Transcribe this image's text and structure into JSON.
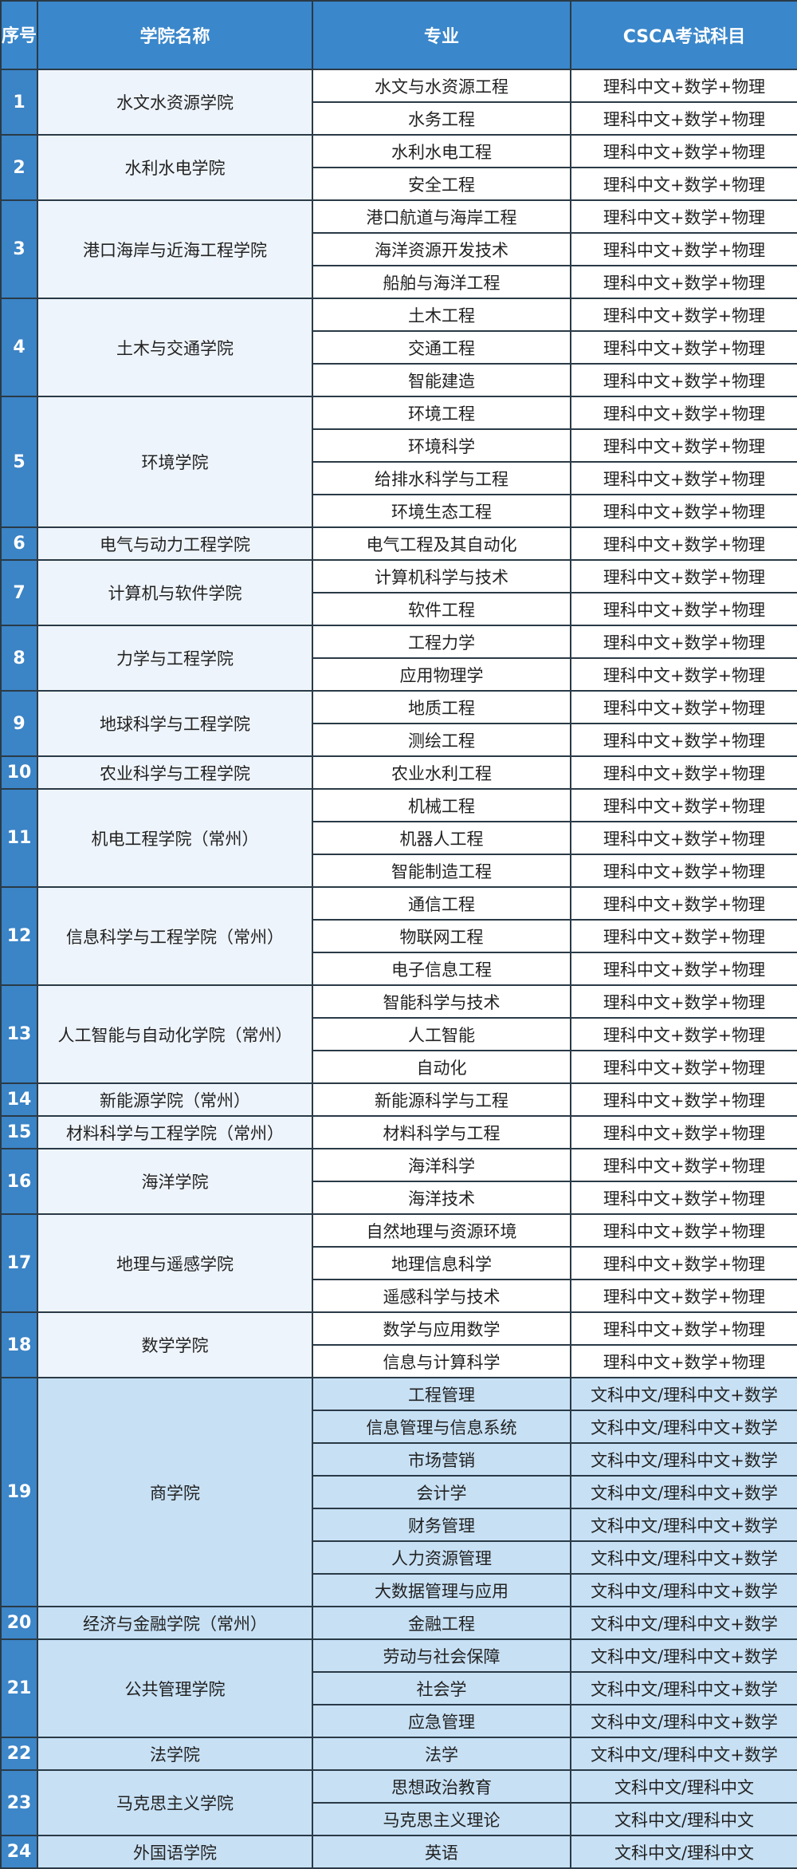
{
  "header": {
    "index": "序号",
    "college": "学院名称",
    "major": "专业",
    "subjects": "CSCA考试科目"
  },
  "colors": {
    "header": "#3a87cb",
    "index_column": "#3b84c6",
    "college_column": "#eef4fb",
    "arts_section": "#c7e0f4",
    "border": "#2a3a46"
  },
  "groups": [
    {
      "no": "1",
      "college": "水文水资源学院",
      "majors": [
        [
          "水文与水资源工程",
          "理科中文+数学+物理"
        ],
        [
          "水务工程",
          "理科中文+数学+物理"
        ]
      ]
    },
    {
      "no": "2",
      "college": "水利水电学院",
      "majors": [
        [
          "水利水电工程",
          "理科中文+数学+物理"
        ],
        [
          "安全工程",
          "理科中文+数学+物理"
        ]
      ]
    },
    {
      "no": "3",
      "college": "港口海岸与近海工程学院",
      "majors": [
        [
          "港口航道与海岸工程",
          "理科中文+数学+物理"
        ],
        [
          "海洋资源开发技术",
          "理科中文+数学+物理"
        ],
        [
          "船舶与海洋工程",
          "理科中文+数学+物理"
        ]
      ]
    },
    {
      "no": "4",
      "college": "土木与交通学院",
      "majors": [
        [
          "土木工程",
          "理科中文+数学+物理"
        ],
        [
          "交通工程",
          "理科中文+数学+物理"
        ],
        [
          "智能建造",
          "理科中文+数学+物理"
        ]
      ]
    },
    {
      "no": "5",
      "college": "环境学院",
      "majors": [
        [
          "环境工程",
          "理科中文+数学+物理"
        ],
        [
          "环境科学",
          "理科中文+数学+物理"
        ],
        [
          "给排水科学与工程",
          "理科中文+数学+物理"
        ],
        [
          "环境生态工程",
          "理科中文+数学+物理"
        ]
      ]
    },
    {
      "no": "6",
      "college": "电气与动力工程学院",
      "majors": [
        [
          "电气工程及其自动化",
          "理科中文+数学+物理"
        ]
      ]
    },
    {
      "no": "7",
      "college": "计算机与软件学院",
      "majors": [
        [
          "计算机科学与技术",
          "理科中文+数学+物理"
        ],
        [
          "软件工程",
          "理科中文+数学+物理"
        ]
      ]
    },
    {
      "no": "8",
      "college": "力学与工程学院",
      "majors": [
        [
          "工程力学",
          "理科中文+数学+物理"
        ],
        [
          "应用物理学",
          "理科中文+数学+物理"
        ]
      ]
    },
    {
      "no": "9",
      "college": "地球科学与工程学院",
      "majors": [
        [
          "地质工程",
          "理科中文+数学+物理"
        ],
        [
          "测绘工程",
          "理科中文+数学+物理"
        ]
      ]
    },
    {
      "no": "10",
      "college": "农业科学与工程学院",
      "majors": [
        [
          "农业水利工程",
          "理科中文+数学+物理"
        ]
      ]
    },
    {
      "no": "11",
      "college": "机电工程学院（常州）",
      "majors": [
        [
          "机械工程",
          "理科中文+数学+物理"
        ],
        [
          "机器人工程",
          "理科中文+数学+物理"
        ],
        [
          "智能制造工程",
          "理科中文+数学+物理"
        ]
      ]
    },
    {
      "no": "12",
      "college": "信息科学与工程学院（常州）",
      "majors": [
        [
          "通信工程",
          "理科中文+数学+物理"
        ],
        [
          "物联网工程",
          "理科中文+数学+物理"
        ],
        [
          "电子信息工程",
          "理科中文+数学+物理"
        ]
      ]
    },
    {
      "no": "13",
      "college": "人工智能与自动化学院（常州）",
      "majors": [
        [
          "智能科学与技术",
          "理科中文+数学+物理"
        ],
        [
          "人工智能",
          "理科中文+数学+物理"
        ],
        [
          "自动化",
          "理科中文+数学+物理"
        ]
      ]
    },
    {
      "no": "14",
      "college": "新能源学院（常州）",
      "majors": [
        [
          "新能源科学与工程",
          "理科中文+数学+物理"
        ]
      ]
    },
    {
      "no": "15",
      "college": "材料科学与工程学院（常州）",
      "majors": [
        [
          "材料科学与工程",
          "理科中文+数学+物理"
        ]
      ]
    },
    {
      "no": "16",
      "college": "海洋学院",
      "majors": [
        [
          "海洋科学",
          "理科中文+数学+物理"
        ],
        [
          "海洋技术",
          "理科中文+数学+物理"
        ]
      ]
    },
    {
      "no": "17",
      "college": "地理与遥感学院",
      "majors": [
        [
          "自然地理与资源环境",
          "理科中文+数学+物理"
        ],
        [
          "地理信息科学",
          "理科中文+数学+物理"
        ],
        [
          "遥感科学与技术",
          "理科中文+数学+物理"
        ]
      ]
    },
    {
      "no": "18",
      "college": "数学学院",
      "majors": [
        [
          "数学与应用数学",
          "理科中文+数学+物理"
        ],
        [
          "信息与计算科学",
          "理科中文+数学+物理"
        ]
      ]
    },
    {
      "no": "19",
      "college": "商学院",
      "section": "arts",
      "majors": [
        [
          "工程管理",
          "文科中文/理科中文+数学"
        ],
        [
          "信息管理与信息系统",
          "文科中文/理科中文+数学"
        ],
        [
          "市场营销",
          "文科中文/理科中文+数学"
        ],
        [
          "会计学",
          "文科中文/理科中文+数学"
        ],
        [
          "财务管理",
          "文科中文/理科中文+数学"
        ],
        [
          "人力资源管理",
          "文科中文/理科中文+数学"
        ],
        [
          "大数据管理与应用",
          "文科中文/理科中文+数学"
        ]
      ]
    },
    {
      "no": "20",
      "college": "经济与金融学院（常州）",
      "section": "arts",
      "majors": [
        [
          "金融工程",
          "文科中文/理科中文+数学"
        ]
      ]
    },
    {
      "no": "21",
      "college": "公共管理学院",
      "section": "arts",
      "majors": [
        [
          "劳动与社会保障",
          "文科中文/理科中文+数学"
        ],
        [
          "社会学",
          "文科中文/理科中文+数学"
        ],
        [
          "应急管理",
          "文科中文/理科中文+数学"
        ]
      ]
    },
    {
      "no": "22",
      "college": "法学院",
      "section": "arts",
      "majors": [
        [
          "法学",
          "文科中文/理科中文+数学"
        ]
      ]
    },
    {
      "no": "23",
      "college": "马克思主义学院",
      "section": "arts",
      "majors": [
        [
          "思想政治教育",
          "文科中文/理科中文"
        ],
        [
          "马克思主义理论",
          "文科中文/理科中文"
        ]
      ]
    },
    {
      "no": "24",
      "college": "外国语学院",
      "section": "arts",
      "majors": [
        [
          "英语",
          "文科中文/理科中文"
        ]
      ]
    }
  ]
}
